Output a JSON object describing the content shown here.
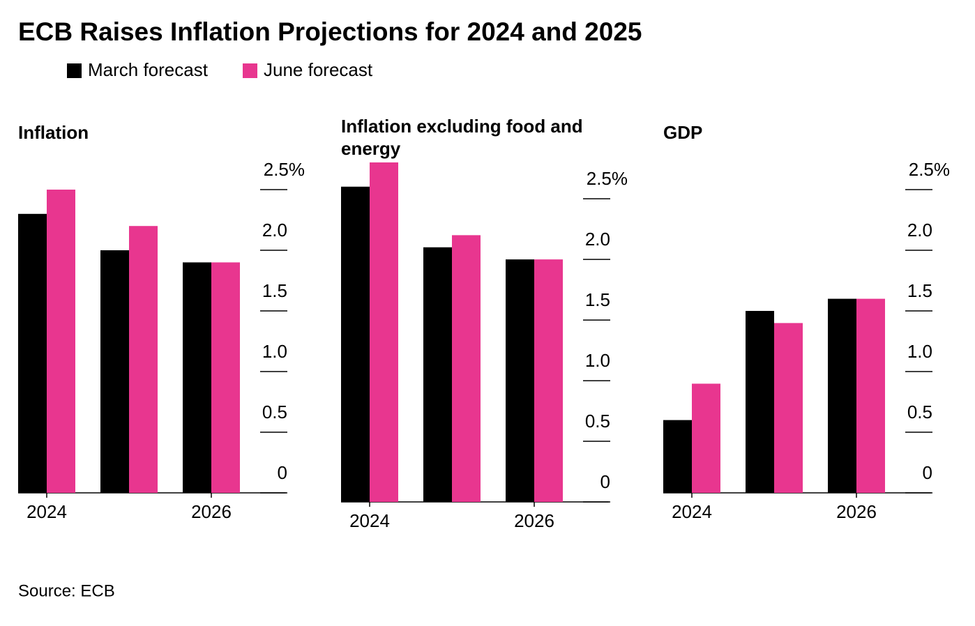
{
  "title": "ECB Raises Inflation Projections for 2024 and 2025",
  "source": "Source: ECB",
  "chart_data": [
    {
      "type": "bar",
      "title": "Inflation",
      "categories": [
        "2024",
        null,
        "2026"
      ],
      "series": [
        {
          "name": "March forecast",
          "color": "#000000",
          "values": [
            2.3,
            2.0,
            1.9
          ]
        },
        {
          "name": "June forecast",
          "color": "#e8368f",
          "values": [
            2.5,
            2.2,
            1.9
          ]
        }
      ],
      "ylim": [
        0,
        2.5
      ],
      "yticks": [
        0,
        0.5,
        {
          "value": 1,
          "label": "1.0"
        },
        1.5,
        {
          "value": 2,
          "label": "2.0"
        },
        {
          "value": 2.5,
          "label": "2.5%"
        }
      ]
    },
    {
      "type": "bar",
      "title": "Inflation excluding food and energy",
      "categories": [
        "2024",
        null,
        "2026"
      ],
      "series": [
        {
          "name": "March forecast",
          "color": "#000000",
          "values": [
            2.6,
            2.1,
            2.0
          ]
        },
        {
          "name": "June forecast",
          "color": "#e8368f",
          "values": [
            2.8,
            2.2,
            2.0
          ]
        }
      ],
      "ylim": [
        0,
        2.8
      ],
      "yticks": [
        0,
        0.5,
        {
          "value": 1,
          "label": "1.0"
        },
        1.5,
        {
          "value": 2,
          "label": "2.0"
        },
        {
          "value": 2.5,
          "label": "2.5%"
        }
      ]
    },
    {
      "type": "bar",
      "title": "GDP",
      "categories": [
        "2024",
        null,
        "2026"
      ],
      "series": [
        {
          "name": "March forecast",
          "color": "#000000",
          "values": [
            0.6,
            1.5,
            1.6
          ]
        },
        {
          "name": "June forecast",
          "color": "#e8368f",
          "values": [
            0.9,
            1.4,
            1.6
          ]
        }
      ],
      "ylim": [
        0,
        2.5
      ],
      "yticks": [
        0,
        0.5,
        {
          "value": 1,
          "label": "1.0"
        },
        1.5,
        {
          "value": 2,
          "label": "2.0"
        },
        {
          "value": 2.5,
          "label": "2.5%"
        }
      ]
    }
  ]
}
